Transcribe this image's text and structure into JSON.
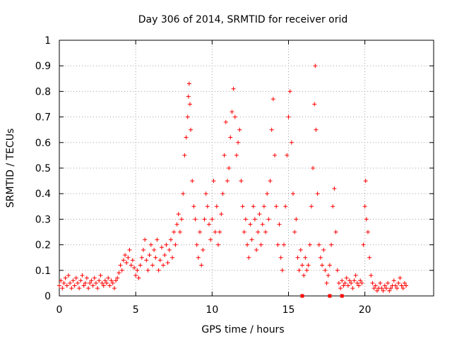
{
  "chart_data": {
    "type": "scatter",
    "title": "Day 306 of 2014, SRMTID for receiver orid",
    "xlabel": "GPS time / hours",
    "ylabel": "SRMTID / TECUs",
    "xlim": [
      0,
      24.5
    ],
    "ylim": [
      0,
      1
    ],
    "x_ticks": [
      0,
      5,
      10,
      15,
      20
    ],
    "x_tick_labels": [
      "0",
      "5",
      "10",
      "15",
      "20"
    ],
    "y_ticks": [
      0,
      0.1,
      0.2,
      0.3,
      0.4,
      0.5,
      0.6,
      0.7,
      0.8,
      0.9,
      1
    ],
    "y_tick_labels": [
      "0",
      "0.1",
      "0.2",
      "0.3",
      "0.4",
      "0.5",
      "0.6",
      "0.7",
      "0.8",
      "0.9",
      "1"
    ],
    "grid": true,
    "marker": "+",
    "colors": {
      "points": "#ff0000",
      "grid": "#a0a0a0",
      "axes": "#000000"
    },
    "series": [
      {
        "name": "SRMTID",
        "points": [
          [
            0.0,
            0.04
          ],
          [
            0.1,
            0.06
          ],
          [
            0.2,
            0.03
          ],
          [
            0.3,
            0.05
          ],
          [
            0.4,
            0.07
          ],
          [
            0.5,
            0.04
          ],
          [
            0.6,
            0.08
          ],
          [
            0.7,
            0.05
          ],
          [
            0.8,
            0.03
          ],
          [
            0.9,
            0.06
          ],
          [
            1.0,
            0.04
          ],
          [
            1.1,
            0.07
          ],
          [
            1.2,
            0.05
          ],
          [
            1.3,
            0.03
          ],
          [
            1.4,
            0.06
          ],
          [
            1.5,
            0.08
          ],
          [
            1.6,
            0.04
          ],
          [
            1.7,
            0.05
          ],
          [
            1.8,
            0.07
          ],
          [
            1.9,
            0.03
          ],
          [
            2.0,
            0.05
          ],
          [
            2.1,
            0.06
          ],
          [
            2.2,
            0.04
          ],
          [
            2.3,
            0.07
          ],
          [
            2.4,
            0.05
          ],
          [
            2.5,
            0.03
          ],
          [
            2.6,
            0.06
          ],
          [
            2.7,
            0.08
          ],
          [
            2.8,
            0.05
          ],
          [
            2.9,
            0.04
          ],
          [
            3.0,
            0.06
          ],
          [
            3.1,
            0.05
          ],
          [
            3.2,
            0.07
          ],
          [
            3.3,
            0.04
          ],
          [
            3.4,
            0.06
          ],
          [
            3.5,
            0.05
          ],
          [
            3.6,
            0.03
          ],
          [
            3.7,
            0.06
          ],
          [
            3.8,
            0.07
          ],
          [
            3.9,
            0.09
          ],
          [
            4.0,
            0.12
          ],
          [
            4.1,
            0.1
          ],
          [
            4.2,
            0.14
          ],
          [
            4.3,
            0.16
          ],
          [
            4.4,
            0.13
          ],
          [
            4.5,
            0.15
          ],
          [
            4.6,
            0.18
          ],
          [
            4.7,
            0.12
          ],
          [
            4.8,
            0.14
          ],
          [
            4.9,
            0.11
          ],
          [
            5.0,
            0.08
          ],
          [
            5.1,
            0.1
          ],
          [
            5.2,
            0.07
          ],
          [
            5.3,
            0.12
          ],
          [
            5.4,
            0.15
          ],
          [
            5.5,
            0.18
          ],
          [
            5.6,
            0.22
          ],
          [
            5.7,
            0.14
          ],
          [
            5.8,
            0.1
          ],
          [
            5.9,
            0.16
          ],
          [
            6.0,
            0.2
          ],
          [
            6.1,
            0.12
          ],
          [
            6.2,
            0.18
          ],
          [
            6.3,
            0.15
          ],
          [
            6.4,
            0.22
          ],
          [
            6.5,
            0.1
          ],
          [
            6.6,
            0.14
          ],
          [
            6.7,
            0.19
          ],
          [
            6.8,
            0.12
          ],
          [
            6.9,
            0.16
          ],
          [
            7.0,
            0.2
          ],
          [
            7.1,
            0.13
          ],
          [
            7.2,
            0.18
          ],
          [
            7.3,
            0.22
          ],
          [
            7.4,
            0.15
          ],
          [
            7.5,
            0.25
          ],
          [
            7.6,
            0.2
          ],
          [
            7.7,
            0.28
          ],
          [
            7.8,
            0.32
          ],
          [
            7.9,
            0.25
          ],
          [
            8.0,
            0.3
          ],
          [
            8.1,
            0.4
          ],
          [
            8.2,
            0.55
          ],
          [
            8.3,
            0.62
          ],
          [
            8.4,
            0.7
          ],
          [
            8.45,
            0.78
          ],
          [
            8.5,
            0.83
          ],
          [
            8.55,
            0.75
          ],
          [
            8.6,
            0.65
          ],
          [
            8.7,
            0.45
          ],
          [
            8.8,
            0.35
          ],
          [
            8.9,
            0.3
          ],
          [
            9.0,
            0.2
          ],
          [
            9.1,
            0.15
          ],
          [
            9.2,
            0.25
          ],
          [
            9.3,
            0.12
          ],
          [
            9.4,
            0.18
          ],
          [
            9.5,
            0.3
          ],
          [
            9.6,
            0.4
          ],
          [
            9.7,
            0.35
          ],
          [
            9.8,
            0.28
          ],
          [
            9.9,
            0.22
          ],
          [
            10.0,
            0.3
          ],
          [
            10.1,
            0.45
          ],
          [
            10.2,
            0.25
          ],
          [
            10.3,
            0.35
          ],
          [
            10.4,
            0.2
          ],
          [
            10.5,
            0.25
          ],
          [
            10.6,
            0.32
          ],
          [
            10.7,
            0.4
          ],
          [
            10.8,
            0.55
          ],
          [
            10.9,
            0.68
          ],
          [
            11.0,
            0.45
          ],
          [
            11.1,
            0.5
          ],
          [
            11.2,
            0.62
          ],
          [
            11.3,
            0.72
          ],
          [
            11.4,
            0.81
          ],
          [
            11.5,
            0.7
          ],
          [
            11.6,
            0.55
          ],
          [
            11.7,
            0.6
          ],
          [
            11.8,
            0.65
          ],
          [
            11.9,
            0.45
          ],
          [
            12.0,
            0.35
          ],
          [
            12.1,
            0.25
          ],
          [
            12.2,
            0.3
          ],
          [
            12.3,
            0.2
          ],
          [
            12.4,
            0.15
          ],
          [
            12.5,
            0.28
          ],
          [
            12.6,
            0.22
          ],
          [
            12.7,
            0.35
          ],
          [
            12.8,
            0.3
          ],
          [
            12.9,
            0.18
          ],
          [
            13.0,
            0.25
          ],
          [
            13.1,
            0.32
          ],
          [
            13.2,
            0.2
          ],
          [
            13.3,
            0.28
          ],
          [
            13.4,
            0.35
          ],
          [
            13.5,
            0.25
          ],
          [
            13.6,
            0.4
          ],
          [
            13.7,
            0.3
          ],
          [
            13.8,
            0.45
          ],
          [
            13.9,
            0.65
          ],
          [
            14.0,
            0.77
          ],
          [
            14.1,
            0.55
          ],
          [
            14.2,
            0.35
          ],
          [
            14.3,
            0.2
          ],
          [
            14.4,
            0.28
          ],
          [
            14.5,
            0.15
          ],
          [
            14.6,
            0.1
          ],
          [
            14.7,
            0.2
          ],
          [
            14.8,
            0.35
          ],
          [
            14.9,
            0.55
          ],
          [
            15.0,
            0.7
          ],
          [
            15.1,
            0.8
          ],
          [
            15.2,
            0.6
          ],
          [
            15.3,
            0.4
          ],
          [
            15.4,
            0.25
          ],
          [
            15.5,
            0.3
          ],
          [
            15.6,
            0.15
          ],
          [
            15.7,
            0.1
          ],
          [
            15.8,
            0.18
          ],
          [
            15.9,
            0.12
          ],
          [
            16.0,
            0.08
          ],
          [
            16.1,
            0.15
          ],
          [
            16.2,
            0.1
          ],
          [
            16.3,
            0.12
          ],
          [
            16.4,
            0.2
          ],
          [
            16.5,
            0.35
          ],
          [
            16.6,
            0.5
          ],
          [
            16.7,
            0.75
          ],
          [
            16.75,
            0.9
          ],
          [
            16.8,
            0.65
          ],
          [
            16.9,
            0.4
          ],
          [
            17.0,
            0.2
          ],
          [
            17.1,
            0.15
          ],
          [
            17.2,
            0.12
          ],
          [
            17.3,
            0.18
          ],
          [
            17.4,
            0.1
          ],
          [
            17.5,
            0.05
          ],
          [
            17.6,
            0.08
          ],
          [
            17.7,
            0.12
          ],
          [
            17.8,
            0.2
          ],
          [
            17.9,
            0.35
          ],
          [
            18.0,
            0.42
          ],
          [
            18.1,
            0.25
          ],
          [
            18.2,
            0.1
          ],
          [
            18.3,
            0.05
          ],
          [
            18.4,
            0.03
          ],
          [
            18.5,
            0.06
          ],
          [
            18.6,
            0.04
          ],
          [
            18.7,
            0.05
          ],
          [
            18.8,
            0.07
          ],
          [
            18.9,
            0.04
          ],
          [
            19.0,
            0.06
          ],
          [
            19.1,
            0.05
          ],
          [
            19.2,
            0.03
          ],
          [
            19.3,
            0.06
          ],
          [
            19.4,
            0.08
          ],
          [
            19.5,
            0.05
          ],
          [
            19.6,
            0.04
          ],
          [
            19.7,
            0.06
          ],
          [
            19.8,
            0.05
          ],
          [
            19.9,
            0.2
          ],
          [
            20.0,
            0.35
          ],
          [
            20.05,
            0.45
          ],
          [
            20.1,
            0.3
          ],
          [
            20.2,
            0.25
          ],
          [
            20.3,
            0.15
          ],
          [
            20.4,
            0.08
          ],
          [
            20.5,
            0.05
          ],
          [
            20.6,
            0.03
          ],
          [
            20.7,
            0.04
          ],
          [
            20.8,
            0.02
          ],
          [
            20.9,
            0.03
          ],
          [
            21.0,
            0.05
          ],
          [
            21.1,
            0.03
          ],
          [
            21.2,
            0.02
          ],
          [
            21.3,
            0.04
          ],
          [
            21.4,
            0.03
          ],
          [
            21.5,
            0.05
          ],
          [
            21.6,
            0.02
          ],
          [
            21.7,
            0.03
          ],
          [
            21.8,
            0.04
          ],
          [
            21.9,
            0.06
          ],
          [
            22.0,
            0.04
          ],
          [
            22.1,
            0.03
          ],
          [
            22.2,
            0.05
          ],
          [
            22.3,
            0.07
          ],
          [
            22.4,
            0.04
          ],
          [
            22.5,
            0.03
          ],
          [
            22.6,
            0.05
          ],
          [
            22.7,
            0.04
          ]
        ]
      },
      {
        "name": "zero-markers",
        "marker": "square",
        "points": [
          [
            15.9,
            0.0
          ],
          [
            17.7,
            0.0
          ],
          [
            18.5,
            0.0
          ]
        ]
      }
    ]
  }
}
